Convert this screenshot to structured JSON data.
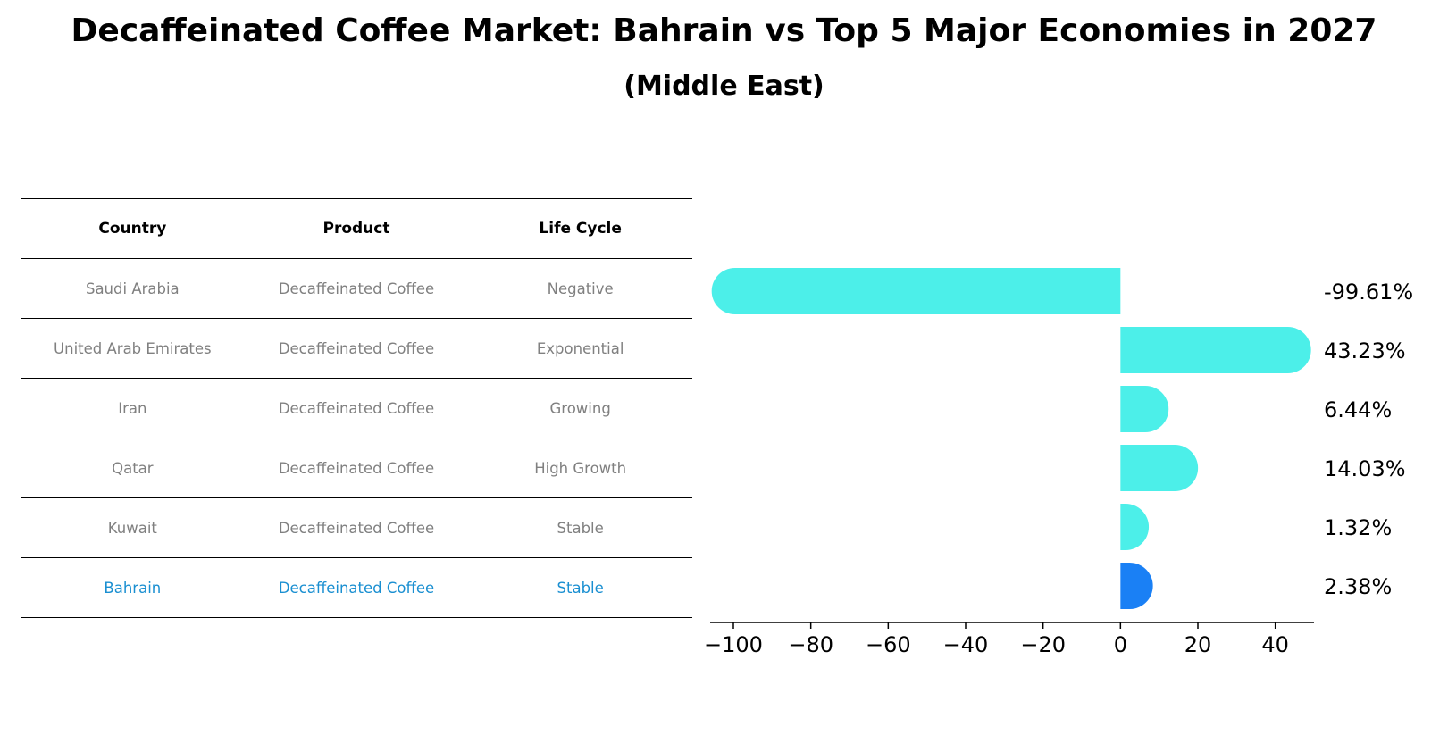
{
  "title": "Decaffeinated Coffee Market: Bahrain vs Top 5 Major Economies in 2027",
  "subtitle": "(Middle East)",
  "table": {
    "headers": [
      "Country",
      "Product",
      "Life Cycle"
    ],
    "rows": [
      [
        "Saudi Arabia",
        "Decaffeinated Coffee",
        "Negative"
      ],
      [
        "United Arab Emirates",
        "Decaffeinated Coffee",
        "Exponential"
      ],
      [
        "Iran",
        "Decaffeinated Coffee",
        "Growing"
      ],
      [
        "Qatar",
        "Decaffeinated Coffee",
        "High Growth"
      ],
      [
        "Kuwait",
        "Decaffeinated Coffee",
        "Stable"
      ],
      [
        "Bahrain",
        "Decaffeinated Coffee",
        "Stable"
      ]
    ],
    "highlight_row": 5,
    "highlight_color": "#1a8fd1"
  },
  "chart_data": {
    "type": "bar",
    "orientation": "horizontal",
    "categories": [
      "Saudi Arabia",
      "United Arab Emirates",
      "Iran",
      "Qatar",
      "Kuwait",
      "Bahrain"
    ],
    "values": [
      -99.61,
      43.23,
      6.44,
      14.03,
      1.32,
      2.38
    ],
    "value_labels": [
      "-99.61%",
      "43.23%",
      "6.44%",
      "14.03%",
      "1.32%",
      "2.38%"
    ],
    "colors": [
      "#4cefe9",
      "#4cefe9",
      "#4cefe9",
      "#4cefe9",
      "#4cefe9",
      "#1a80f5"
    ],
    "xticks": [
      -100,
      -80,
      -60,
      -40,
      -20,
      0,
      20,
      40
    ],
    "xtick_labels": [
      "−100",
      "−80",
      "−60",
      "−40",
      "−20",
      "0",
      "20",
      "40"
    ],
    "xlim": [
      -106,
      50
    ],
    "grid": false
  }
}
